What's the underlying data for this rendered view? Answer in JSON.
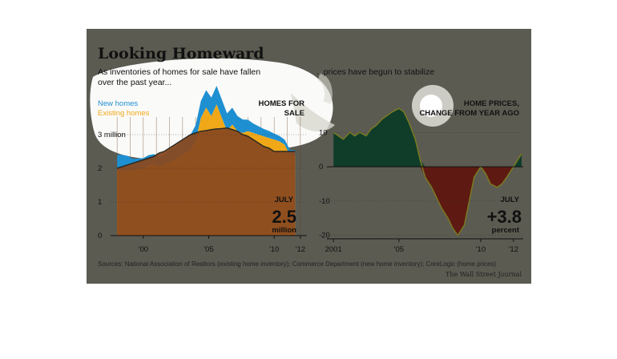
{
  "header": {
    "title": "Looking Homeward",
    "left_sub_line1": "As inventories of homes for sale have fallen",
    "left_sub_line2": "over the past year...",
    "right_sub": "...prices have begun to stabilize"
  },
  "colors": {
    "panel_bg": "#5b5b52",
    "new_homes": "#1e8fd1",
    "existing_homes": "#f0a818",
    "total_fill": "#8a4a20",
    "positive": "#0f3d2a",
    "negative": "#5e1a12",
    "highlight": "#ffffff"
  },
  "chart_data": [
    {
      "type": "area",
      "title": "HOMES FOR SALE",
      "series": [
        {
          "name": "New homes",
          "values": [
            0.45,
            0.45,
            0.42,
            0.33,
            0.31,
            0.3,
            0.29,
            0.3,
            0.3,
            0.32,
            0.34,
            0.37,
            0.4,
            0.42,
            0.44,
            0.48,
            0.5,
            0.52,
            0.55,
            0.55,
            0.54,
            0.53,
            0.5,
            0.45,
            0.4,
            0.34,
            0.28,
            0.25,
            0.22,
            0.21,
            0.18,
            0.16,
            0.15,
            0.15,
            0.15
          ]
        },
        {
          "name": "Existing homes",
          "values": [
            1.95,
            1.95,
            1.95,
            1.95,
            1.98,
            2.0,
            2.1,
            2.12,
            2.05,
            2.1,
            2.2,
            2.25,
            2.35,
            2.45,
            2.55,
            2.8,
            3.5,
            3.8,
            3.55,
            3.9,
            3.5,
            3.1,
            3.3,
            3.1,
            3.05,
            3.1,
            3.05,
            3.0,
            2.95,
            2.9,
            2.85,
            2.8,
            2.7,
            2.4,
            2.38
          ]
        }
      ],
      "x": [
        1998.0,
        1998.4,
        1998.8,
        1999.2,
        1999.6,
        2000.0,
        2000.4,
        2000.8,
        2001.2,
        2001.6,
        2002.0,
        2002.4,
        2002.8,
        2003.2,
        2003.6,
        2004.0,
        2004.4,
        2004.8,
        2005.2,
        2005.6,
        2006.0,
        2006.4,
        2006.8,
        2007.2,
        2007.6,
        2008.0,
        2008.4,
        2008.8,
        2009.2,
        2009.6,
        2010.0,
        2010.4,
        2010.8,
        2011.2,
        2011.6
      ],
      "trend_total": [
        2.0,
        2.05,
        2.1,
        2.15,
        2.2,
        2.25,
        2.3,
        2.35,
        2.45,
        2.5,
        2.6,
        2.7,
        2.8,
        2.9,
        3.0,
        3.05,
        3.1,
        3.12,
        3.15,
        3.17,
        3.18,
        3.2,
        3.15,
        3.1,
        3.0,
        2.95,
        2.85,
        2.75,
        2.65,
        2.6,
        2.5,
        2.5,
        2.5,
        2.5,
        2.5
      ],
      "y_ticks": [
        {
          "v": 0,
          "label": "0"
        },
        {
          "v": 1,
          "label": "1"
        },
        {
          "v": 2,
          "label": "2"
        },
        {
          "v": 3,
          "label": "3 million"
        }
      ],
      "x_ticks": [
        {
          "v": 2000,
          "label": "'00"
        },
        {
          "v": 2005,
          "label": "'05"
        },
        {
          "v": 2010,
          "label": "'10"
        },
        {
          "v": 2012,
          "label": "'12"
        }
      ],
      "ylim": [
        0,
        4.0
      ],
      "xlim": [
        1997.5,
        2012.5
      ],
      "legend": [
        "New homes",
        "Existing homes"
      ],
      "callout": {
        "month": "JULY",
        "value": "2.5",
        "unit": "million"
      }
    },
    {
      "type": "area",
      "title": "HOME PRICES, CHANGE FROM YEAR AGO",
      "x": [
        2001.0,
        2001.3,
        2001.6,
        2002.0,
        2002.3,
        2002.6,
        2003.0,
        2003.3,
        2003.6,
        2004.0,
        2004.3,
        2004.6,
        2005.0,
        2005.3,
        2005.6,
        2006.0,
        2006.3,
        2006.6,
        2007.0,
        2007.3,
        2007.6,
        2008.0,
        2008.3,
        2008.6,
        2009.0,
        2009.3,
        2009.6,
        2010.0,
        2010.3,
        2010.6,
        2011.0,
        2011.3,
        2011.6,
        2012.0,
        2012.5
      ],
      "values": [
        10,
        9,
        8,
        10,
        9,
        10,
        9,
        11,
        12,
        14,
        15,
        16,
        17,
        16,
        13,
        8,
        2,
        -3,
        -6,
        -9,
        -12,
        -15,
        -18,
        -20,
        -17,
        -10,
        -3,
        0,
        -2,
        -5,
        -6,
        -5,
        -3,
        0,
        3.8
      ],
      "y_ticks": [
        {
          "v": 10,
          "label": "10"
        },
        {
          "v": 0,
          "label": "0"
        },
        {
          "v": -10,
          "label": "-10"
        },
        {
          "v": -20,
          "label": "-20"
        }
      ],
      "x_ticks": [
        {
          "v": 2001,
          "label": "2001"
        },
        {
          "v": 2005,
          "label": "'05"
        },
        {
          "v": 2010,
          "label": "'10"
        },
        {
          "v": 2012,
          "label": "'12"
        }
      ],
      "ylim": [
        -21,
        18
      ],
      "xlim": [
        2000.6,
        2012.6
      ],
      "callout": {
        "month": "JULY",
        "value": "+3.8",
        "unit": "percent"
      }
    }
  ],
  "footer": {
    "sources": "Sources: National Association of Realtors (existing home inventory); Commerce Department (new home inventory); CoreLogic (home prices)",
    "credit": "The Wall Street Journal"
  }
}
